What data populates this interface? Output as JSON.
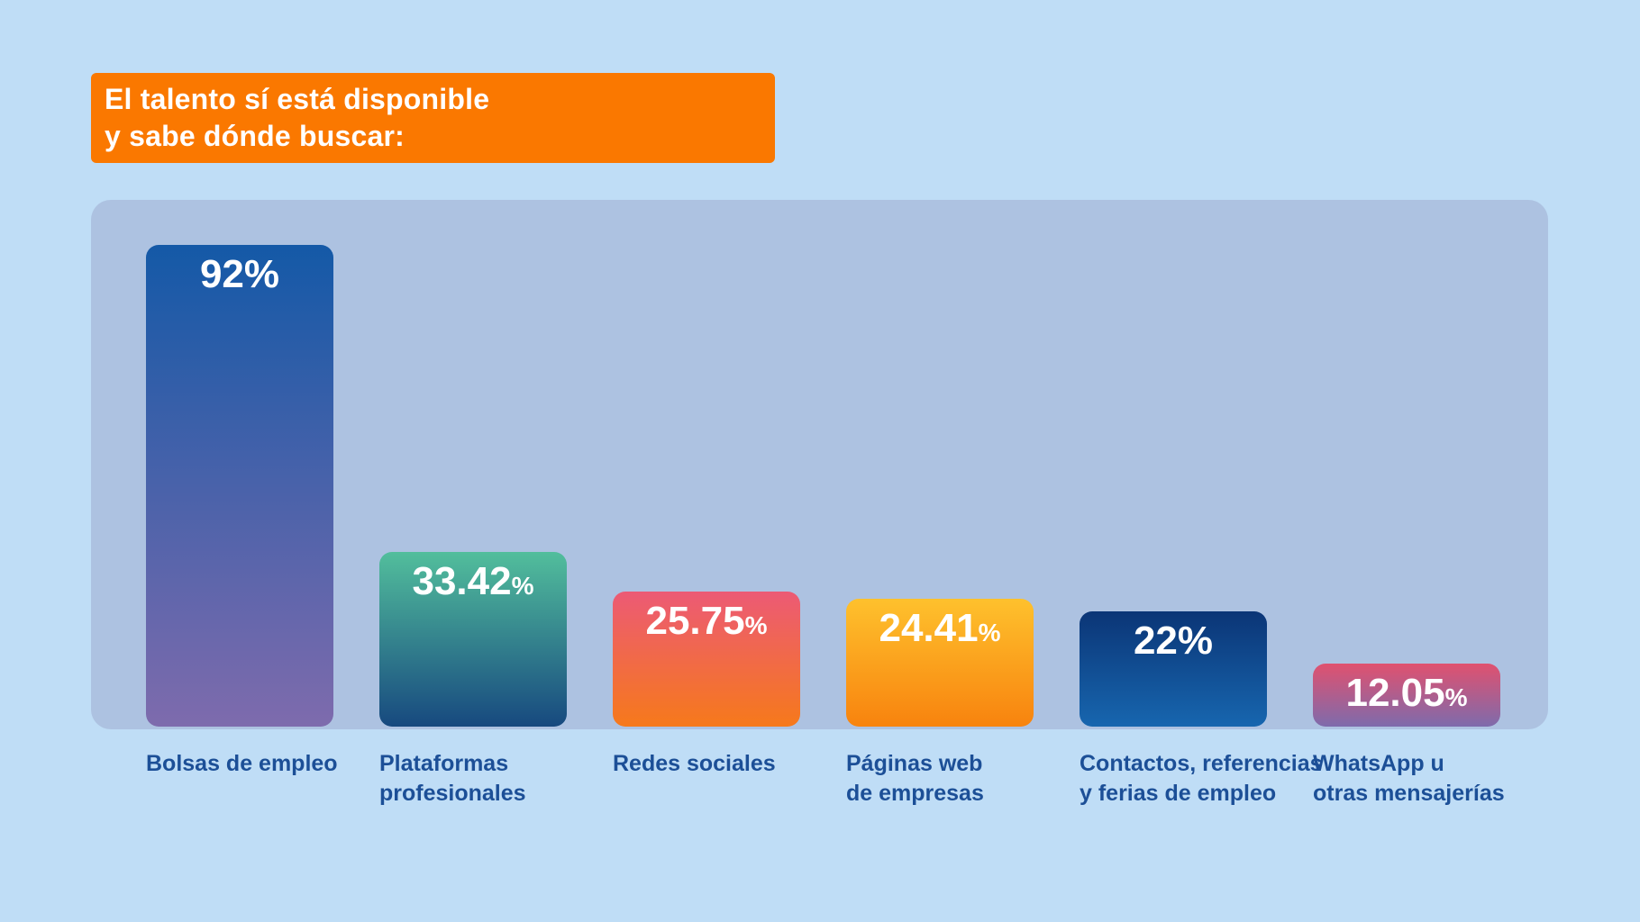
{
  "header": {
    "title_line1": "El talento sí está disponible",
    "title_line2": "y sabe dónde buscar:"
  },
  "chart_data": {
    "type": "bar",
    "title": "El talento sí está disponible y sabe dónde buscar:",
    "unit": "%",
    "categories": [
      "Bolsas de empleo",
      "Plataformas profesionales",
      "Redes sociales",
      "Páginas web de empresas",
      "Contactos, referencias y ferias de empleo",
      "WhatsApp u otras mensajerías"
    ],
    "category_label_lines": [
      [
        "Bolsas de empleo"
      ],
      [
        "Plataformas",
        "profesionales"
      ],
      [
        "Redes sociales"
      ],
      [
        "Páginas web",
        "de empresas"
      ],
      [
        "Contactos, referencias",
        "y ferias de empleo"
      ],
      [
        "WhatsApp u",
        "otras mensajerías"
      ]
    ],
    "values": [
      92,
      33.42,
      25.75,
      24.41,
      22,
      12.05
    ],
    "value_display": [
      "92",
      "33.42",
      "25.75",
      "24.41",
      "22",
      "12.05"
    ],
    "bar_gradients": [
      [
        "#1459A7",
        "#7E6BAD"
      ],
      [
        "#52BE9C",
        "#17497F"
      ],
      [
        "#EC5A75",
        "#F6791B"
      ],
      [
        "#FEC12D",
        "#F8830E"
      ],
      [
        "#0B3576",
        "#1766AF"
      ],
      [
        "#E0516F",
        "#7E6BAC"
      ]
    ],
    "ylim": [
      0,
      100
    ],
    "grid": false,
    "legend": false,
    "value_label_position": "inside-top"
  },
  "colors": {
    "background": "#BFDDF6",
    "panel": "#ADC2E1",
    "header_bg": "#FA7800",
    "header_text": "#FFFFFF",
    "category_text": "#1C4F97",
    "value_text": "#FFFFFF"
  }
}
